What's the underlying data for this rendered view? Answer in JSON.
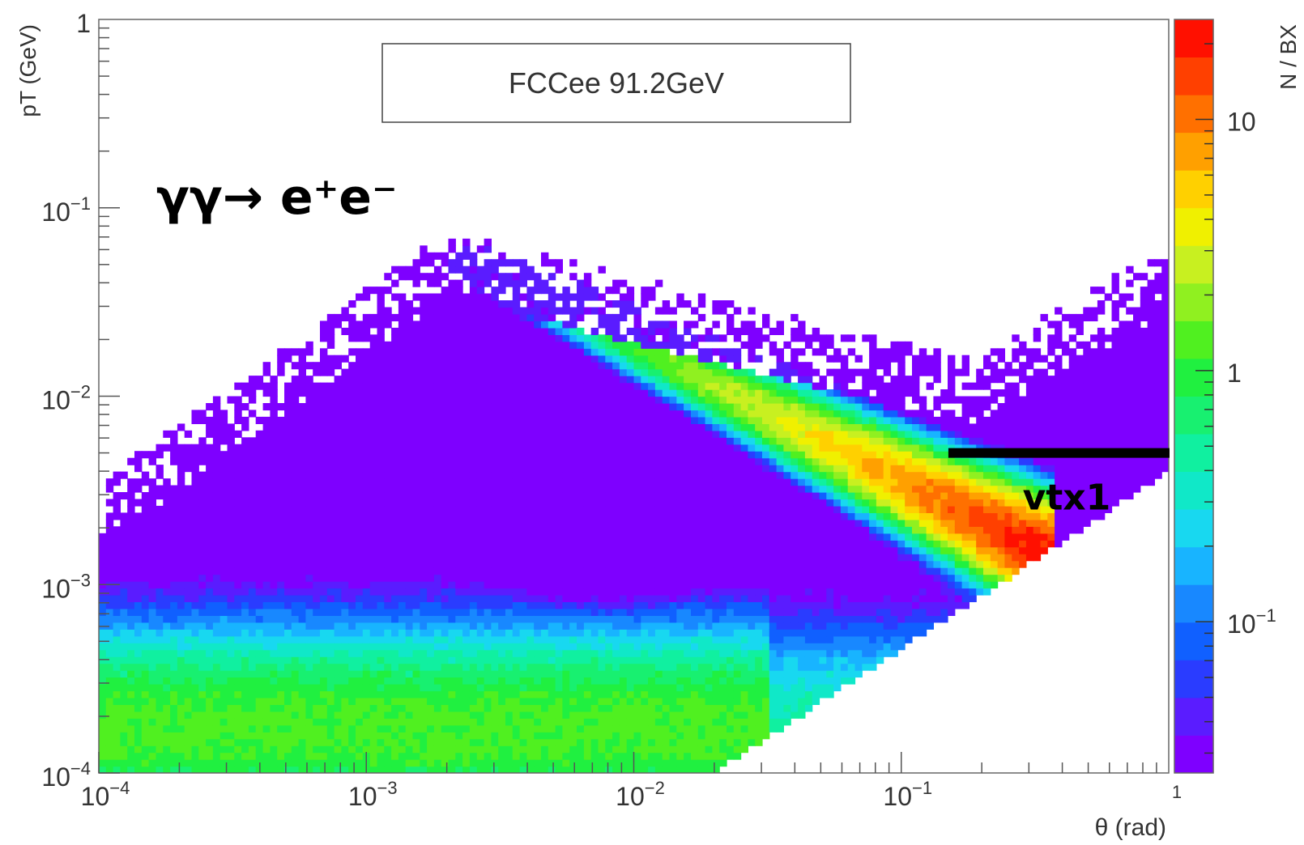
{
  "chart_data": {
    "type": "heatmap",
    "title": "FCCee 91.2GeV",
    "process_label": "γγ→ e⁺e⁻",
    "xlabel": "θ (rad)",
    "ylabel": "pT (GeV)",
    "zlabel": "N / BX",
    "x_scale": "log",
    "y_scale": "log",
    "z_scale": "log",
    "xlim": [
      0.0001,
      1
    ],
    "ylim": [
      0.0001,
      1
    ],
    "zlim": [
      0.025,
      25
    ],
    "x_ticks": [
      {
        "value": 0.0001,
        "base": "10",
        "exp": "−4"
      },
      {
        "value": 0.001,
        "base": "10",
        "exp": "−3"
      },
      {
        "value": 0.01,
        "base": "10",
        "exp": "−2"
      },
      {
        "value": 0.1,
        "base": "10",
        "exp": "−1"
      },
      {
        "value": 1,
        "base": "",
        "exp": "1"
      }
    ],
    "y_ticks": [
      {
        "value": 0.0001,
        "base": "10",
        "exp": "−4"
      },
      {
        "value": 0.001,
        "base": "10",
        "exp": "−3"
      },
      {
        "value": 0.01,
        "base": "10",
        "exp": "−2"
      },
      {
        "value": 0.1,
        "base": "10",
        "exp": "−1"
      },
      {
        "value": 1,
        "base": "1",
        "exp": ""
      }
    ],
    "z_ticks": [
      {
        "value": 0.1,
        "base": "10",
        "exp": "−1"
      },
      {
        "value": 1,
        "base": "1",
        "exp": ""
      },
      {
        "value": 10,
        "base": "10",
        "exp": ""
      }
    ],
    "annotations": [
      {
        "text": "vtx1",
        "theta_range": [
          0.15,
          1.0
        ],
        "pT": 0.005
      }
    ],
    "density_features": [
      {
        "name": "low-pT band",
        "theta_range": [
          0.0001,
          0.02
        ],
        "pT_range": [
          0.0001,
          0.0003
        ],
        "level": 1.2
      },
      {
        "name": "central diagonal ridge",
        "theta_range": [
          0.002,
          0.3
        ],
        "pT_start": 0.06,
        "pT_end": 0.0016,
        "peak_level": 20
      },
      {
        "name": "kinematic edge",
        "theta_range": [
          0.02,
          1.0
        ],
        "pT_start": 0.0001,
        "pT_end": 0.004
      },
      {
        "name": "depleted region",
        "theta_center": 0.008,
        "pT_center": 0.0015,
        "level": 0.05
      }
    ],
    "colorscale": [
      "#7e00ff",
      "#5a1cff",
      "#2a3cff",
      "#1060ff",
      "#1888ff",
      "#18b4ff",
      "#18d8f0",
      "#10e8c8",
      "#10f0a0",
      "#18f070",
      "#20f040",
      "#50f020",
      "#90f020",
      "#c8f020",
      "#f0f000",
      "#ffd000",
      "#ffa000",
      "#ff7000",
      "#ff4000",
      "#ff1000"
    ]
  }
}
